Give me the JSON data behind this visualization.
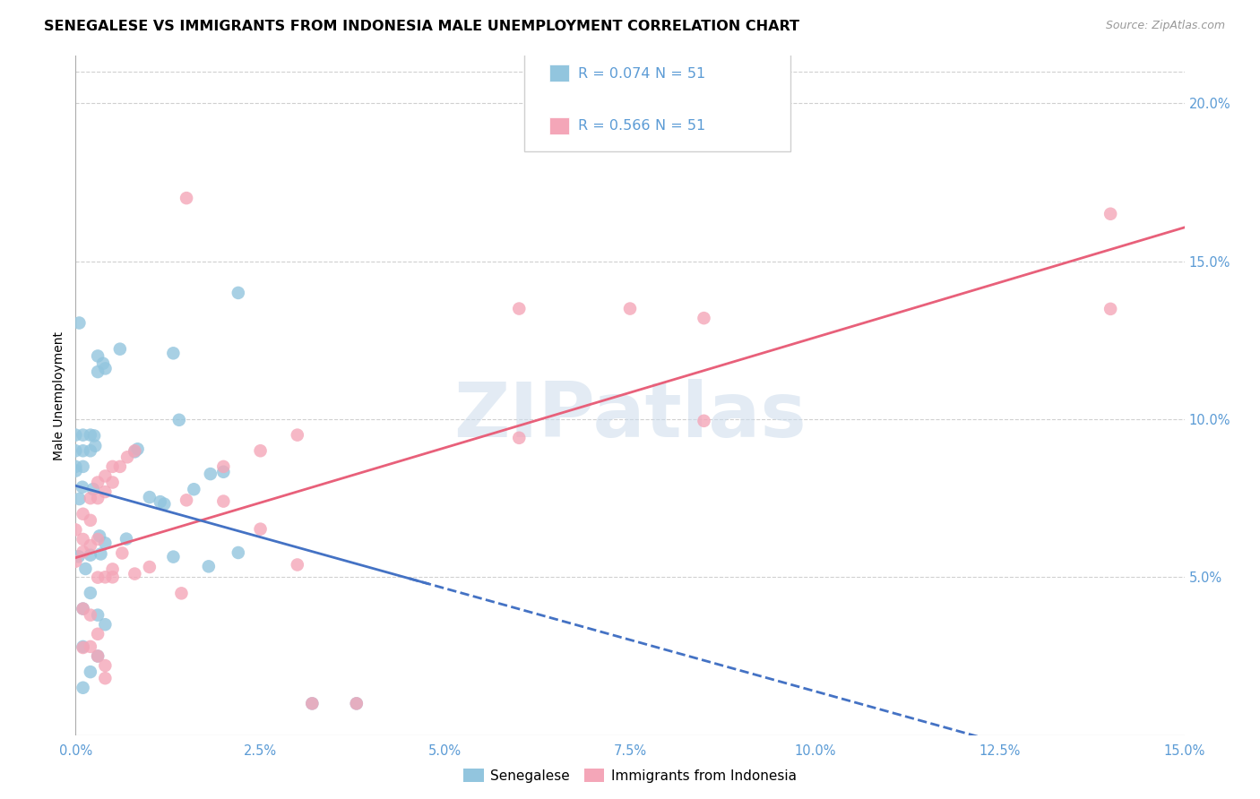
{
  "title": "SENEGALESE VS IMMIGRANTS FROM INDONESIA MALE UNEMPLOYMENT CORRELATION CHART",
  "source": "Source: ZipAtlas.com",
  "ylabel": "Male Unemployment",
  "watermark": "ZIPatlas",
  "blue_color": "#92c5de",
  "pink_color": "#f4a6b8",
  "blue_line_color": "#4472c4",
  "pink_line_color": "#e8607a",
  "background_color": "#ffffff",
  "grid_color": "#d0d0d0",
  "axis_color": "#aaaaaa",
  "tick_color": "#5b9bd5",
  "title_fontsize": 11.5,
  "label_fontsize": 10,
  "tick_fontsize": 10.5,
  "legend_r1": "R = 0.074",
  "legend_n1": "N = 51",
  "legend_r2": "R = 0.566",
  "legend_n2": "N = 51",
  "legend_label1": "Senegalese",
  "legend_label2": "Immigrants from Indonesia"
}
